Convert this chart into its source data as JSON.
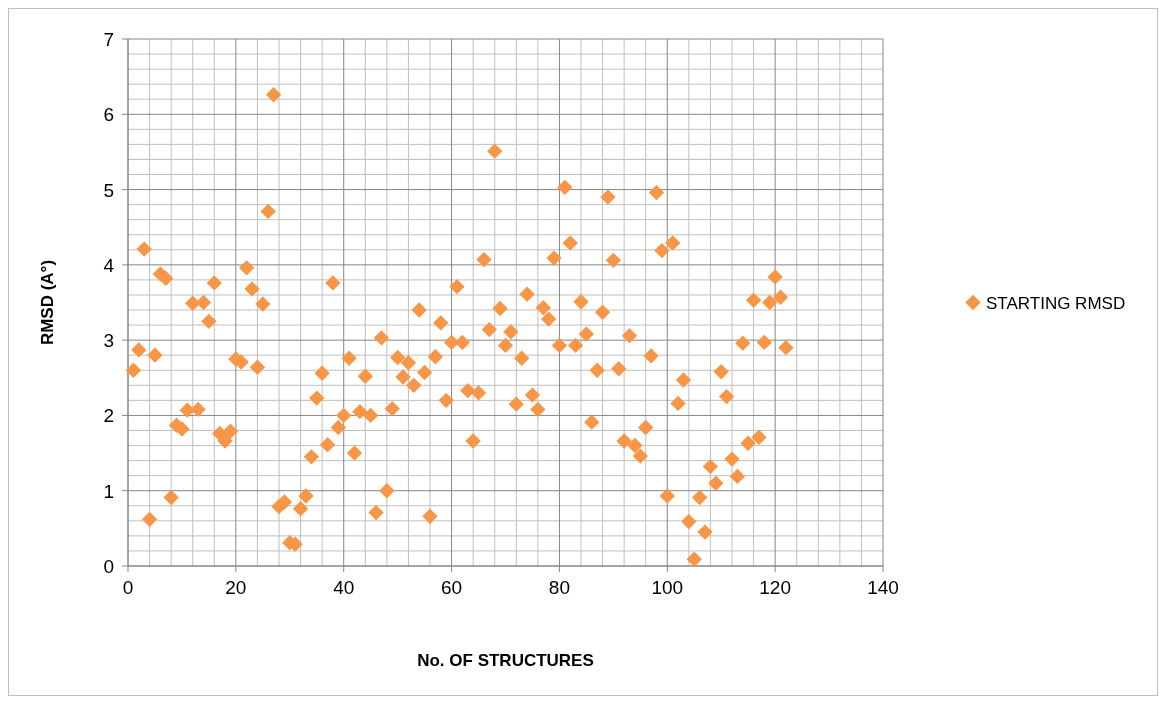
{
  "chart_data": {
    "type": "scatter",
    "xlabel": "No. OF STRUCTURES",
    "ylabel": "RMSD (A°)",
    "x": [
      1,
      2,
      3,
      4,
      5,
      6,
      7,
      8,
      9,
      10,
      11,
      12,
      13,
      14,
      15,
      16,
      17,
      18,
      19,
      20,
      21,
      22,
      23,
      24,
      25,
      26,
      27,
      28,
      29,
      30,
      31,
      32,
      33,
      34,
      35,
      36,
      37,
      38,
      39,
      40,
      41,
      42,
      43,
      44,
      45,
      46,
      47,
      48,
      49,
      50,
      51,
      52,
      53,
      54,
      55,
      56,
      57,
      58,
      59,
      60,
      61,
      62,
      63,
      64,
      65,
      66,
      67,
      68,
      69,
      70,
      71,
      72,
      73,
      74,
      75,
      76,
      77,
      78,
      79,
      80,
      81,
      82,
      83,
      84,
      85,
      86,
      87,
      88,
      89,
      90,
      91,
      92,
      93,
      94,
      95,
      96,
      97,
      98,
      99,
      100,
      101,
      102,
      103,
      104,
      105,
      106,
      107,
      108,
      109,
      110,
      111,
      112,
      113,
      114,
      115,
      116,
      117,
      118,
      119,
      120,
      121,
      122
    ],
    "series": [
      {
        "name": "STARTING RMSD",
        "color": "#f79646",
        "values": [
          2.6,
          2.87,
          4.21,
          0.62,
          2.8,
          3.88,
          3.82,
          0.91,
          1.87,
          1.82,
          2.07,
          3.49,
          2.08,
          3.5,
          3.25,
          3.76,
          1.76,
          1.66,
          1.79,
          2.75,
          2.71,
          3.96,
          3.68,
          2.64,
          3.48,
          4.71,
          6.26,
          0.79,
          0.85,
          0.31,
          0.29,
          0.76,
          0.93,
          1.45,
          2.23,
          2.56,
          1.61,
          3.76,
          1.84,
          2.0,
          2.76,
          1.5,
          2.05,
          2.52,
          2.0,
          0.71,
          3.03,
          1.0,
          2.09,
          2.77,
          2.51,
          2.7,
          2.4,
          3.4,
          2.57,
          0.66,
          2.78,
          3.23,
          2.2,
          2.97,
          3.71,
          2.97,
          2.33,
          1.66,
          2.3,
          4.07,
          3.14,
          5.51,
          3.42,
          2.93,
          3.11,
          2.15,
          2.76,
          3.61,
          2.27,
          2.08,
          3.43,
          3.28,
          4.09,
          2.93,
          5.03,
          4.29,
          2.93,
          3.51,
          3.08,
          1.91,
          2.6,
          3.37,
          4.9,
          4.06,
          2.62,
          1.66,
          3.06,
          1.6,
          1.46,
          1.84,
          2.79,
          4.96,
          4.19,
          0.93,
          4.29,
          2.16,
          2.47,
          0.59,
          0.09,
          0.91,
          0.45,
          1.32,
          1.1,
          2.58,
          2.25,
          1.42,
          1.19,
          2.96,
          1.63,
          3.53,
          1.71,
          2.97,
          3.5,
          3.84,
          3.57,
          2.9
        ]
      }
    ],
    "xlim": [
      0,
      140
    ],
    "xticks": [
      0,
      20,
      40,
      60,
      80,
      100,
      120,
      140
    ],
    "ylim": [
      0,
      7
    ],
    "yticks": [
      0,
      1,
      2,
      3,
      4,
      5,
      6,
      7
    ],
    "grid": true,
    "legend": "right",
    "marker": "diamond"
  }
}
